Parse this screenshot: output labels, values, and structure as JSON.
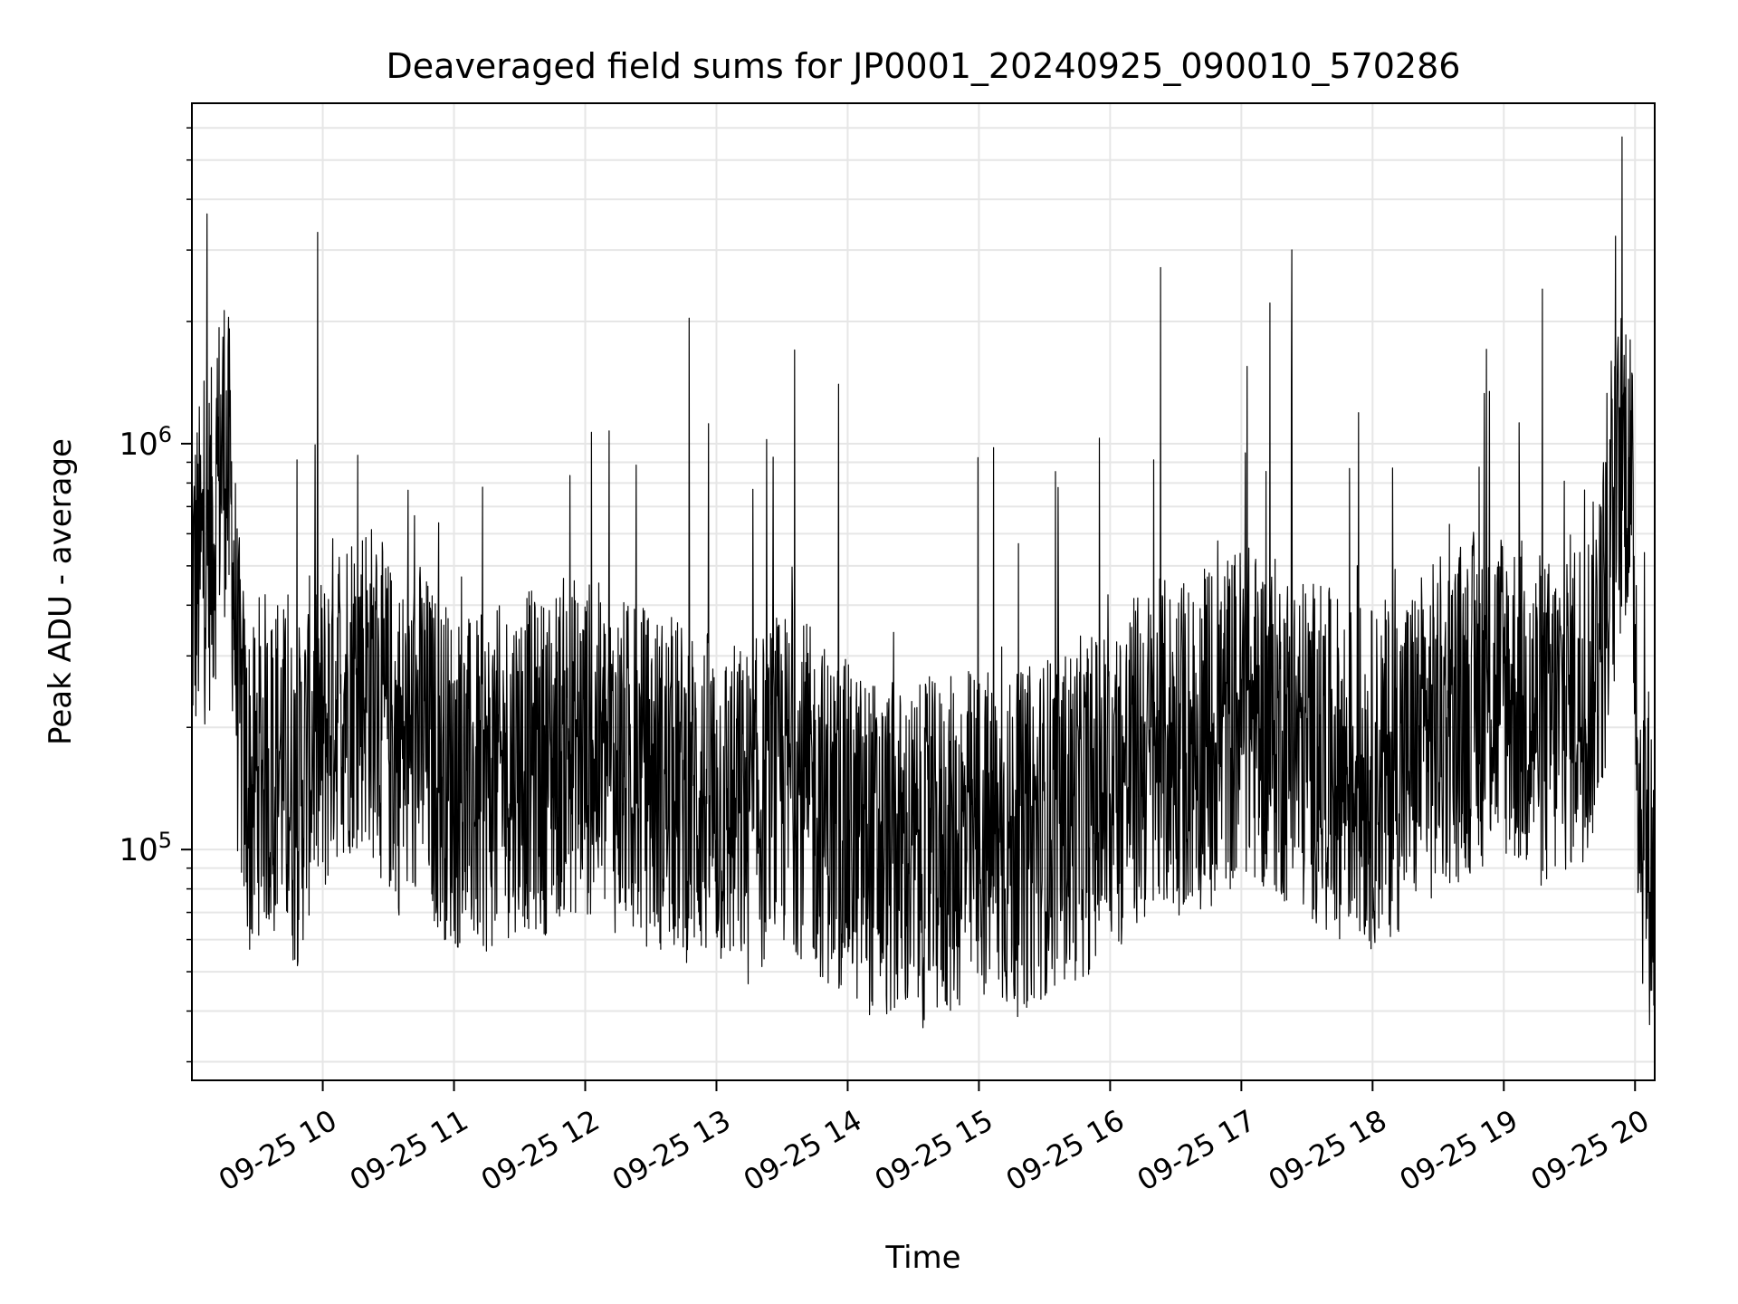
{
  "chart_data": {
    "type": "line",
    "title": "Deaveraged field sums for JP0001_20240925_090010_570286",
    "xlabel": "Time",
    "ylabel": "Peak ADU - average",
    "yscale": "log",
    "grid": true,
    "legend": "none",
    "line_color": "#000000",
    "grid_color": "#e6e6e6",
    "xlim": [
      "2024-09-25 09:00:10",
      "2024-09-25 20:09:00"
    ],
    "ylim": [
      27000,
      6900000
    ],
    "x_ticks": [
      {
        "t": "2024-09-25 10:00",
        "label": "09-25 10"
      },
      {
        "t": "2024-09-25 11:00",
        "label": "09-25 11"
      },
      {
        "t": "2024-09-25 12:00",
        "label": "09-25 12"
      },
      {
        "t": "2024-09-25 13:00",
        "label": "09-25 13"
      },
      {
        "t": "2024-09-25 14:00",
        "label": "09-25 14"
      },
      {
        "t": "2024-09-25 15:00",
        "label": "09-25 15"
      },
      {
        "t": "2024-09-25 16:00",
        "label": "09-25 16"
      },
      {
        "t": "2024-09-25 17:00",
        "label": "09-25 17"
      },
      {
        "t": "2024-09-25 18:00",
        "label": "09-25 18"
      },
      {
        "t": "2024-09-25 19:00",
        "label": "09-25 19"
      },
      {
        "t": "2024-09-25 20:00",
        "label": "09-25 20"
      }
    ],
    "y_ticks": [
      {
        "value": 100000,
        "base": "10",
        "exp": "5"
      },
      {
        "value": 1000000,
        "base": "10",
        "exp": "6"
      }
    ],
    "series": [
      {
        "x": [
          "2024-09-25 09:00",
          "2024-09-25 09:05",
          "2024-09-25 09:10",
          "2024-09-25 09:13",
          "2024-09-25 09:15",
          "2024-09-25 09:18",
          "2024-09-25 09:21",
          "2024-09-25 09:25",
          "2024-09-25 09:28",
          "2024-09-25 09:30",
          "2024-09-25 09:33",
          "2024-09-25 09:36",
          "2024-09-25 09:40",
          "2024-09-25 09:44",
          "2024-09-25 09:48",
          "2024-09-25 09:52",
          "2024-09-25 09:56",
          "2024-09-25 10:00",
          "2024-09-25 10:05",
          "2024-09-25 10:10",
          "2024-09-25 10:15",
          "2024-09-25 10:20",
          "2024-09-25 10:25",
          "2024-09-25 10:30",
          "2024-09-25 10:35",
          "2024-09-25 10:40",
          "2024-09-25 10:45",
          "2024-09-25 10:50",
          "2024-09-25 10:55",
          "2024-09-25 11:00",
          "2024-09-25 11:10",
          "2024-09-25 11:20",
          "2024-09-25 11:30",
          "2024-09-25 11:40",
          "2024-09-25 11:50",
          "2024-09-25 12:00",
          "2024-09-25 12:15",
          "2024-09-25 12:30",
          "2024-09-25 12:45",
          "2024-09-25 13:00",
          "2024-09-25 13:15",
          "2024-09-25 13:25",
          "2024-09-25 13:35",
          "2024-09-25 13:45",
          "2024-09-25 14:00",
          "2024-09-25 14:15",
          "2024-09-25 14:30",
          "2024-09-25 14:45",
          "2024-09-25 15:00",
          "2024-09-25 15:15",
          "2024-09-25 15:30",
          "2024-09-25 15:45",
          "2024-09-25 16:00",
          "2024-09-25 16:15",
          "2024-09-25 16:30",
          "2024-09-25 16:45",
          "2024-09-25 17:00",
          "2024-09-25 17:15",
          "2024-09-25 17:30",
          "2024-09-25 17:45",
          "2024-09-25 18:00",
          "2024-09-25 18:15",
          "2024-09-25 18:30",
          "2024-09-25 18:45",
          "2024-09-25 19:00",
          "2024-09-25 19:10",
          "2024-09-25 19:20",
          "2024-09-25 19:30",
          "2024-09-25 19:40",
          "2024-09-25 19:48",
          "2024-09-25 19:53",
          "2024-09-25 19:57",
          "2024-09-25 20:00",
          "2024-09-25 20:02",
          "2024-09-25 20:05",
          "2024-09-25 20:09"
        ],
        "y": [
          420000,
          520000,
          600000,
          900000,
          1000000,
          700000,
          250000,
          150000,
          130000,
          160000,
          170000,
          150000,
          180000,
          140000,
          130000,
          160000,
          200000,
          180000,
          240000,
          250000,
          260000,
          270000,
          230000,
          200000,
          180000,
          180000,
          200000,
          170000,
          160000,
          150000,
          140000,
          150000,
          170000,
          160000,
          180000,
          180000,
          160000,
          150000,
          140000,
          130000,
          120000,
          140000,
          150000,
          130000,
          110000,
          100000,
          95000,
          100000,
          110000,
          100000,
          115000,
          125000,
          140000,
          170000,
          180000,
          190000,
          220000,
          200000,
          180000,
          160000,
          150000,
          170000,
          200000,
          230000,
          250000,
          220000,
          200000,
          230000,
          260000,
          450000,
          850000,
          1000000,
          400000,
          130000,
          110000,
          80000
        ]
      }
    ]
  }
}
